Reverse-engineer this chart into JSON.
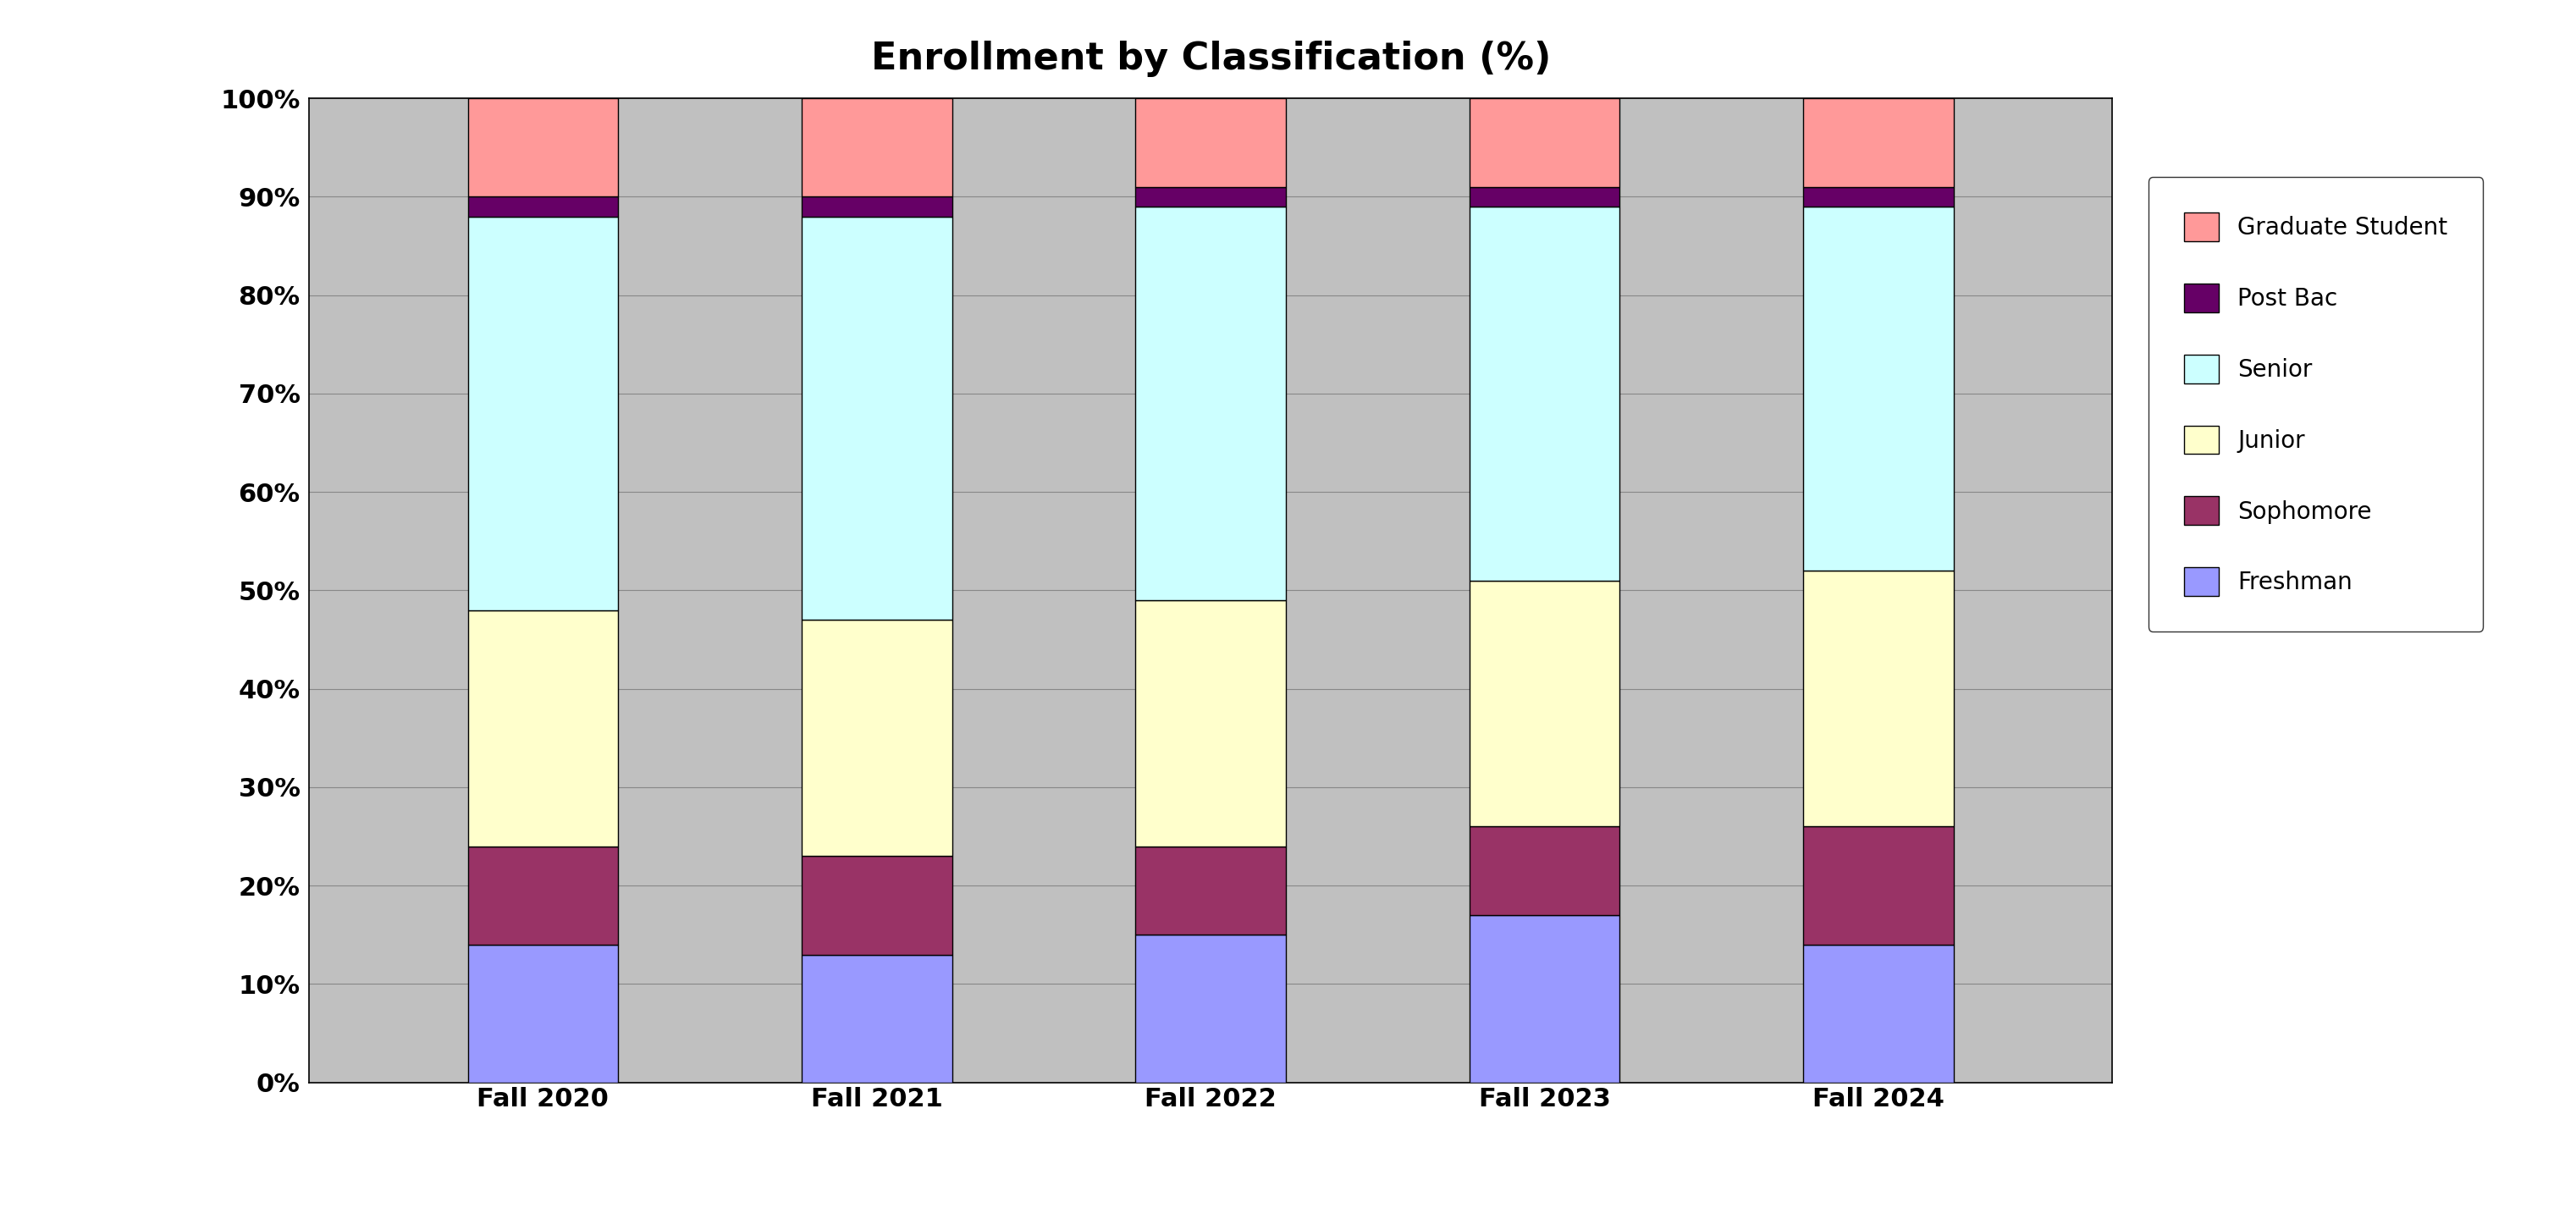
{
  "title": "Enrollment by Classification (%)",
  "categories": [
    "Fall 2020",
    "Fall 2021",
    "Fall 2022",
    "Fall 2023",
    "Fall 2024"
  ],
  "series": [
    {
      "label": "Freshman",
      "color": "#9999FF",
      "values": [
        0.14,
        0.13,
        0.15,
        0.17,
        0.14
      ]
    },
    {
      "label": "Sophomore",
      "color": "#993366",
      "values": [
        0.1,
        0.1,
        0.09,
        0.09,
        0.12
      ]
    },
    {
      "label": "Junior",
      "color": "#FFFFCC",
      "values": [
        0.24,
        0.24,
        0.25,
        0.25,
        0.26
      ]
    },
    {
      "label": "Senior",
      "color": "#CCFFFF",
      "values": [
        0.4,
        0.41,
        0.4,
        0.38,
        0.37
      ]
    },
    {
      "label": "Post Bac",
      "color": "#660066",
      "values": [
        0.02,
        0.02,
        0.02,
        0.02,
        0.02
      ]
    },
    {
      "label": "Graduate Student",
      "color": "#FF9999",
      "values": [
        0.1,
        0.1,
        0.09,
        0.09,
        0.09
      ]
    }
  ],
  "ylim": [
    0,
    1.0
  ],
  "yticks": [
    0.0,
    0.1,
    0.2,
    0.3,
    0.4,
    0.5,
    0.6,
    0.7,
    0.8,
    0.9,
    1.0
  ],
  "yticklabels": [
    "0%",
    "10%",
    "20%",
    "30%",
    "40%",
    "50%",
    "60%",
    "70%",
    "80%",
    "90%",
    "100%"
  ],
  "plot_bg_color": "#C0C0C0",
  "fig_bg_color": "#FFFFFF",
  "bar_width": 0.45,
  "bar_edge_color": "#000000",
  "title_fontsize": 32,
  "tick_fontsize": 22,
  "legend_fontsize": 20,
  "figsize": [
    30.43,
    14.53
  ]
}
